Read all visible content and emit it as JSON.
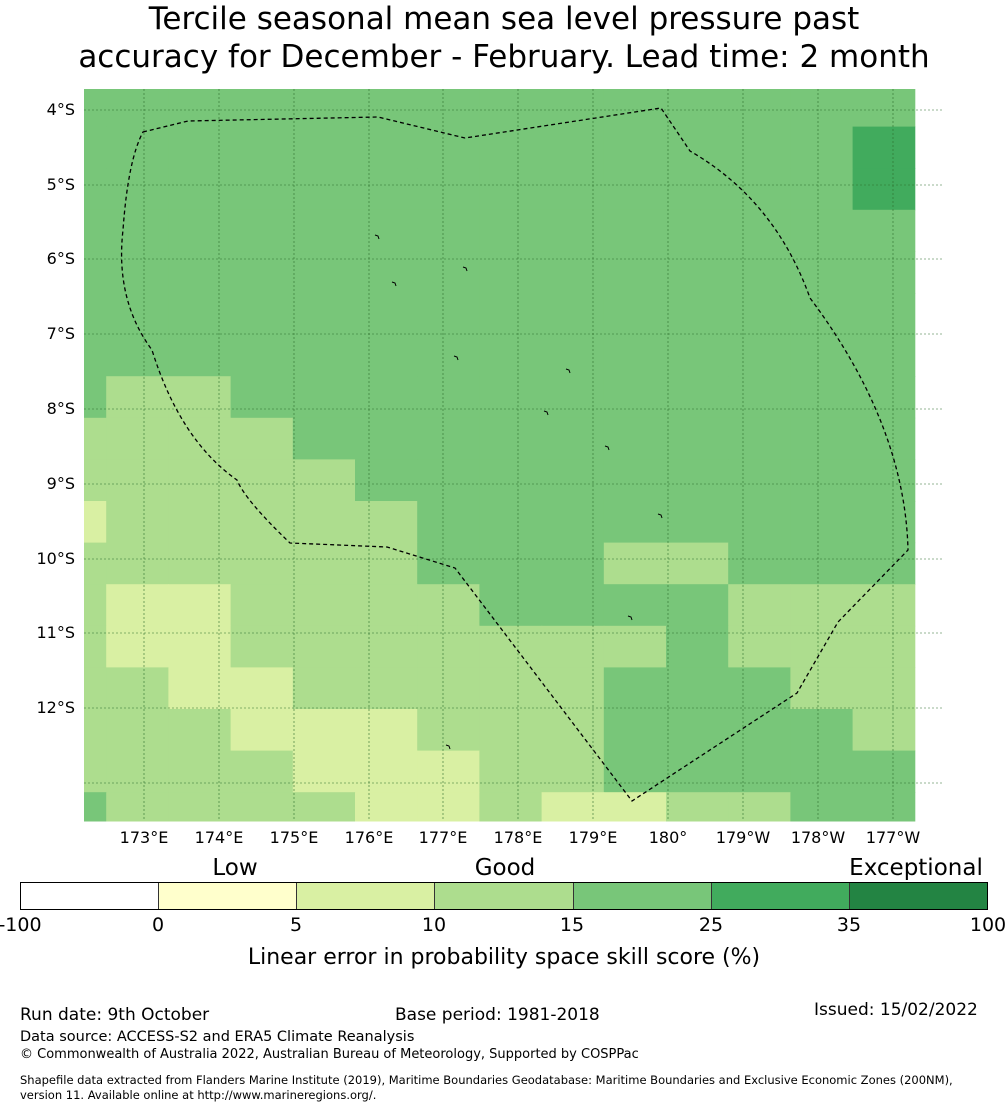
{
  "title": {
    "line1": "Tercile seasonal mean sea level pressure past",
    "line2": "accuracy for December - February. Lead time: 2 month"
  },
  "map": {
    "lat_labels": [
      "4°S",
      "5°S",
      "6°S",
      "7°S",
      "8°S",
      "9°S",
      "10°S",
      "11°S",
      "12°S"
    ],
    "lon_labels": [
      "173°E",
      "174°E",
      "175°E",
      "176°E",
      "177°E",
      "178°E",
      "179°E",
      "180°",
      "179°W",
      "178°W",
      "177°W"
    ],
    "colors": {
      "0": "#ffffcc",
      "1": "#d9f0a3",
      "2": "#addd8e",
      "3": "#78c679",
      "4": "#41ab5d",
      "5": "#238443",
      "grid": "#2d6e2d",
      "boundary": "#000000"
    },
    "skill_grid": [
      "33333333333333",
      "33333333333334",
      "33333333333334",
      "33333333333333",
      "33333333333333",
      "33333333333333",
      "33333333333333",
      "32233333333333",
      "22223333333333",
      "22222333333333",
      "12222233333333",
      "22222233322333",
      "21122223333222",
      "21122222223222",
      "22112222233322",
      "22211122233332",
      "22221112233333",
      "32222112112233",
      "32211112322323"
    ]
  },
  "colorbar": {
    "categories": [
      "Low",
      "Good",
      "Exceptional"
    ],
    "ticks": [
      "-100",
      "0",
      "5",
      "10",
      "15",
      "25",
      "35",
      "100"
    ],
    "segment_colors": [
      "#ffffff",
      "#ffffcc",
      "#d9f0a3",
      "#addd8e",
      "#78c679",
      "#41ab5d",
      "#238443"
    ],
    "label": "Linear error in probability space skill score (%)"
  },
  "footer": {
    "run_date": "Run date: 9th October",
    "base_period": "Base period: 1981-2018",
    "issued": "Issued: 15/02/2022",
    "data_source": "Data source: ACCESS-S2 and ERA5 Climate Reanalysis",
    "copyright": "© Commonwealth of Australia 2022, Australian Bureau of Meteorology, Supported by COSPPac",
    "shapefile_line1": "Shapefile data extracted from Flanders Marine Institute (2019), Maritime Boundaries Geodatabase: Maritime Boundaries and Exclusive Economic Zones (200NM),",
    "shapefile_line2": "version 11. Available online at http://www.marineregions.org/."
  }
}
